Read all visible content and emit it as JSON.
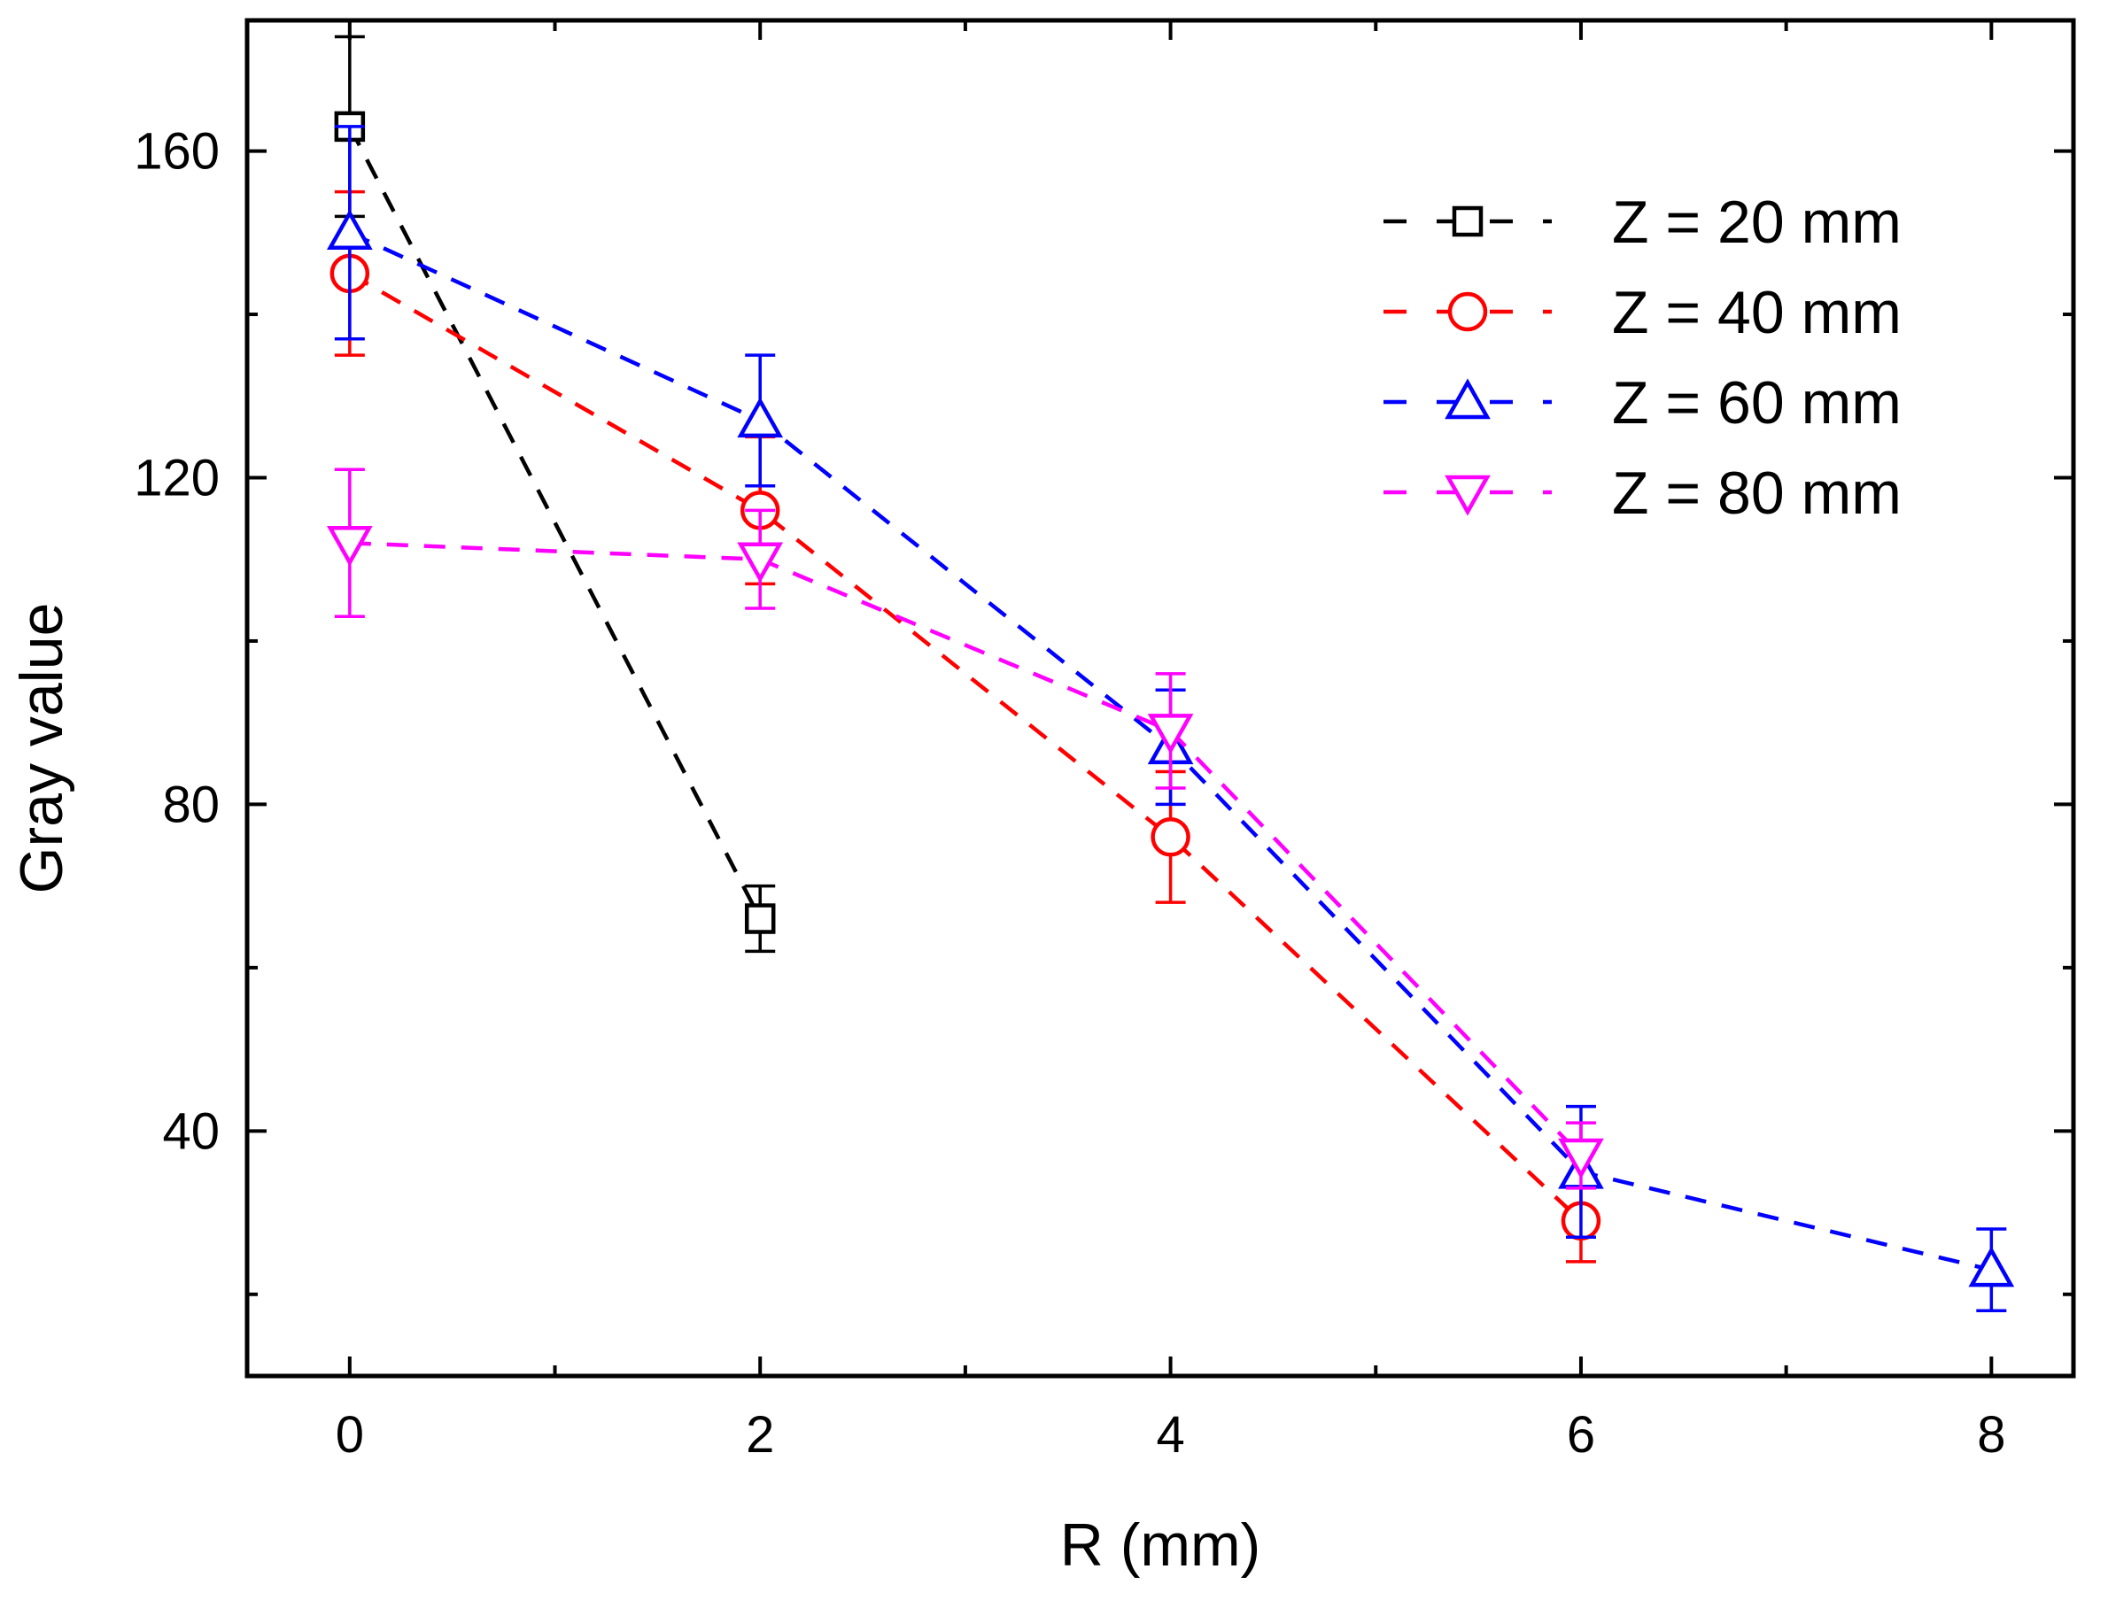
{
  "chart_data": {
    "type": "line",
    "title": "",
    "xlabel": "R (mm)",
    "ylabel": "Gray value",
    "xlim": [
      -0.5,
      8.4
    ],
    "ylim": [
      10,
      176
    ],
    "x_major_ticks": [
      0,
      2,
      4,
      6,
      8
    ],
    "x_minor_ticks": [
      1,
      3,
      5,
      7
    ],
    "y_major_ticks": [
      40,
      80,
      120,
      160
    ],
    "y_minor_ticks": [
      20,
      60,
      100,
      140
    ],
    "grid": false,
    "legend_position": "top-right",
    "series": [
      {
        "name": "Z = 20 mm",
        "color": "#000000",
        "marker": "square",
        "x": [
          0,
          2
        ],
        "values": [
          163,
          66
        ],
        "error": [
          11,
          4
        ]
      },
      {
        "name": "Z = 40 mm",
        "color": "#ff0000",
        "marker": "circle",
        "x": [
          0,
          2,
          4,
          6
        ],
        "values": [
          145,
          116,
          76,
          29
        ],
        "error": [
          10,
          9,
          8,
          5
        ]
      },
      {
        "name": "Z = 60 mm",
        "color": "#0000ff",
        "marker": "triangle-up",
        "x": [
          0,
          2,
          4,
          6,
          8
        ],
        "values": [
          150,
          127,
          87,
          35,
          23
        ],
        "error": [
          13,
          8,
          7,
          8,
          5
        ]
      },
      {
        "name": "Z = 80 mm",
        "color": "#ff00ff",
        "marker": "triangle-down",
        "x": [
          0,
          2,
          4,
          6
        ],
        "values": [
          112,
          110,
          89,
          37
        ],
        "error": [
          9,
          6,
          7,
          4
        ]
      }
    ]
  }
}
